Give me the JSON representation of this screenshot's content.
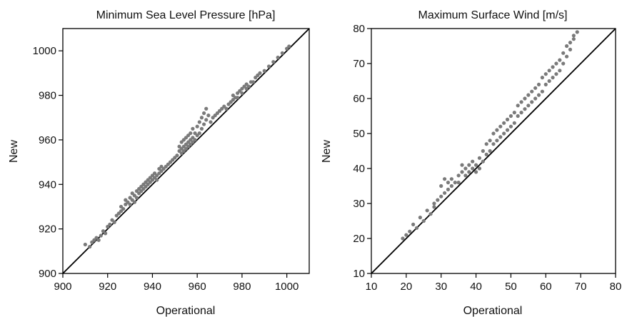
{
  "chart_data": [
    {
      "type": "scatter",
      "title": "Minimum Sea Level Pressure [hPa]",
      "xlabel": "Operational",
      "ylabel": "New",
      "xlim": [
        900,
        1010
      ],
      "ylim": [
        900,
        1010
      ],
      "xticks": [
        900,
        920,
        940,
        960,
        980,
        1000
      ],
      "yticks": [
        900,
        920,
        940,
        960,
        980,
        1000
      ],
      "reference_line": "y = x",
      "grid": false,
      "colors": {
        "points": "#7a7a7a",
        "line": "#000000"
      },
      "series": [
        {
          "points": [
            [
              910,
              913
            ],
            [
              912,
              912
            ],
            [
              913,
              914
            ],
            [
              914,
              915
            ],
            [
              915,
              916
            ],
            [
              916,
              915
            ],
            [
              917,
              917
            ],
            [
              918,
              919
            ],
            [
              919,
              918
            ],
            [
              920,
              921
            ],
            [
              921,
              922
            ],
            [
              922,
              924
            ],
            [
              923,
              923
            ],
            [
              924,
              926
            ],
            [
              925,
              927
            ],
            [
              926,
              928
            ],
            [
              926,
              930
            ],
            [
              927,
              929
            ],
            [
              928,
              931
            ],
            [
              928,
              933
            ],
            [
              929,
              932
            ],
            [
              930,
              931
            ],
            [
              930,
              934
            ],
            [
              931,
              933
            ],
            [
              931,
              936
            ],
            [
              932,
              932
            ],
            [
              932,
              935
            ],
            [
              933,
              937
            ],
            [
              933,
              934
            ],
            [
              934,
              938
            ],
            [
              934,
              936
            ],
            [
              935,
              939
            ],
            [
              935,
              937
            ],
            [
              936,
              940
            ],
            [
              936,
              938
            ],
            [
              937,
              941
            ],
            [
              937,
              939
            ],
            [
              938,
              942
            ],
            [
              938,
              940
            ],
            [
              939,
              943
            ],
            [
              939,
              941
            ],
            [
              940,
              944
            ],
            [
              940,
              942
            ],
            [
              941,
              945
            ],
            [
              941,
              943
            ],
            [
              942,
              944
            ],
            [
              942,
              942
            ],
            [
              943,
              945
            ],
            [
              943,
              947
            ],
            [
              944,
              946
            ],
            [
              944,
              948
            ],
            [
              945,
              947
            ],
            [
              946,
              948
            ],
            [
              947,
              949
            ],
            [
              948,
              950
            ],
            [
              949,
              951
            ],
            [
              950,
              952
            ],
            [
              951,
              953
            ],
            [
              952,
              955
            ],
            [
              952,
              957
            ],
            [
              953,
              954
            ],
            [
              953,
              956
            ],
            [
              953,
              959
            ],
            [
              954,
              955
            ],
            [
              954,
              957
            ],
            [
              954,
              960
            ],
            [
              955,
              956
            ],
            [
              955,
              958
            ],
            [
              955,
              961
            ],
            [
              956,
              957
            ],
            [
              956,
              959
            ],
            [
              956,
              962
            ],
            [
              957,
              958
            ],
            [
              957,
              960
            ],
            [
              957,
              963
            ],
            [
              958,
              959
            ],
            [
              958,
              961
            ],
            [
              958,
              965
            ],
            [
              959,
              960
            ],
            [
              959,
              963
            ],
            [
              960,
              962
            ],
            [
              960,
              966
            ],
            [
              961,
              968
            ],
            [
              961,
              963
            ],
            [
              962,
              970
            ],
            [
              962,
              965
            ],
            [
              963,
              972
            ],
            [
              963,
              967
            ],
            [
              964,
              974
            ],
            [
              964,
              969
            ],
            [
              965,
              971
            ],
            [
              966,
              968
            ],
            [
              967,
              970
            ],
            [
              968,
              971
            ],
            [
              969,
              972
            ],
            [
              970,
              973
            ],
            [
              971,
              974
            ],
            [
              972,
              975
            ],
            [
              973,
              974
            ],
            [
              974,
              976
            ],
            [
              975,
              977
            ],
            [
              976,
              978
            ],
            [
              976,
              980
            ],
            [
              977,
              979
            ],
            [
              978,
              981
            ],
            [
              978,
              979
            ],
            [
              979,
              982
            ],
            [
              980,
              983
            ],
            [
              980,
              981
            ],
            [
              981,
              984
            ],
            [
              982,
              983
            ],
            [
              982,
              985
            ],
            [
              983,
              984
            ],
            [
              984,
              986
            ],
            [
              985,
              986
            ],
            [
              986,
              988
            ],
            [
              987,
              989
            ],
            [
              988,
              990
            ],
            [
              990,
              991
            ],
            [
              992,
              993
            ],
            [
              994,
              995
            ],
            [
              996,
              997
            ],
            [
              998,
              999
            ],
            [
              1000,
              1001
            ],
            [
              1001,
              1002
            ]
          ]
        }
      ]
    },
    {
      "type": "scatter",
      "title": "Maximum Surface Wind [m/s]",
      "xlabel": "Operational",
      "ylabel": "New",
      "xlim": [
        10,
        80
      ],
      "ylim": [
        10,
        80
      ],
      "xticks": [
        10,
        20,
        30,
        40,
        50,
        60,
        70,
        80
      ],
      "yticks": [
        10,
        20,
        30,
        40,
        50,
        60,
        70,
        80
      ],
      "reference_line": "y = x",
      "grid": false,
      "colors": {
        "points": "#7a7a7a",
        "line": "#000000"
      },
      "series": [
        {
          "points": [
            [
              19,
              20
            ],
            [
              20,
              21
            ],
            [
              21,
              22
            ],
            [
              22,
              24
            ],
            [
              23,
              23
            ],
            [
              24,
              26
            ],
            [
              25,
              25
            ],
            [
              26,
              28
            ],
            [
              27,
              27
            ],
            [
              28,
              30
            ],
            [
              28,
              29
            ],
            [
              29,
              31
            ],
            [
              30,
              32
            ],
            [
              30,
              35
            ],
            [
              31,
              33
            ],
            [
              31,
              37
            ],
            [
              32,
              34
            ],
            [
              32,
              36
            ],
            [
              33,
              35
            ],
            [
              33,
              37
            ],
            [
              34,
              36
            ],
            [
              35,
              38
            ],
            [
              35,
              36
            ],
            [
              36,
              39
            ],
            [
              36,
              41
            ],
            [
              37,
              38
            ],
            [
              37,
              40
            ],
            [
              38,
              39
            ],
            [
              38,
              41
            ],
            [
              39,
              40
            ],
            [
              39,
              42
            ],
            [
              40,
              39
            ],
            [
              40,
              41
            ],
            [
              41,
              40
            ],
            [
              41,
              43
            ],
            [
              42,
              42
            ],
            [
              42,
              45
            ],
            [
              43,
              44
            ],
            [
              43,
              47
            ],
            [
              44,
              45
            ],
            [
              44,
              48
            ],
            [
              45,
              47
            ],
            [
              45,
              50
            ],
            [
              46,
              48
            ],
            [
              46,
              51
            ],
            [
              47,
              49
            ],
            [
              47,
              52
            ],
            [
              48,
              50
            ],
            [
              48,
              53
            ],
            [
              49,
              51
            ],
            [
              49,
              54
            ],
            [
              50,
              52
            ],
            [
              50,
              55
            ],
            [
              51,
              53
            ],
            [
              51,
              56
            ],
            [
              52,
              55
            ],
            [
              52,
              58
            ],
            [
              53,
              56
            ],
            [
              53,
              59
            ],
            [
              54,
              57
            ],
            [
              54,
              60
            ],
            [
              55,
              58
            ],
            [
              55,
              61
            ],
            [
              56,
              59
            ],
            [
              56,
              62
            ],
            [
              57,
              60
            ],
            [
              57,
              63
            ],
            [
              58,
              61
            ],
            [
              58,
              64
            ],
            [
              59,
              62
            ],
            [
              59,
              66
            ],
            [
              60,
              64
            ],
            [
              60,
              67
            ],
            [
              61,
              65
            ],
            [
              61,
              68
            ],
            [
              62,
              66
            ],
            [
              62,
              69
            ],
            [
              63,
              67
            ],
            [
              63,
              70
            ],
            [
              64,
              68
            ],
            [
              64,
              71
            ],
            [
              65,
              70
            ],
            [
              65,
              73
            ],
            [
              66,
              72
            ],
            [
              66,
              75
            ],
            [
              67,
              74
            ],
            [
              67,
              76
            ],
            [
              68,
              78
            ],
            [
              68,
              77
            ],
            [
              69,
              79
            ]
          ]
        }
      ]
    }
  ]
}
